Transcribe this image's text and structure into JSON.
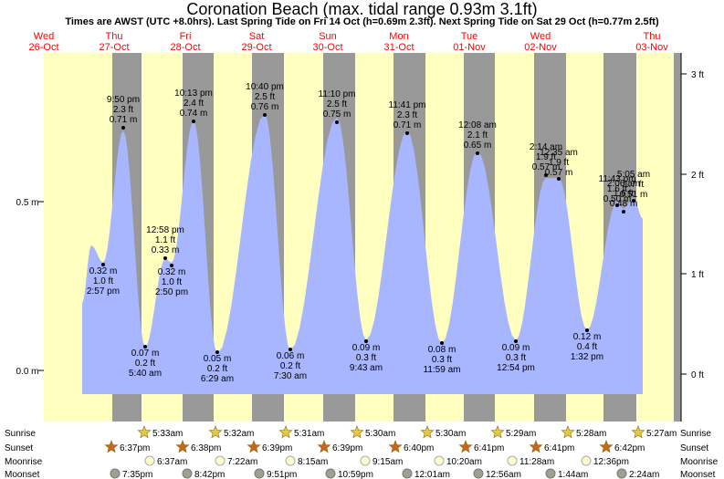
{
  "title": "Coronation Beach (max. tidal range 0.93m 3.1ft)",
  "subtitle": "Times are AWST (UTC +8.0hrs). Last Spring Tide on Fri 14 Oct (h=0.69m 2.3ft). Next Spring Tide on Sat 29 Oct (h=0.77m 2.5ft)",
  "colors": {
    "day": "#ffffc0",
    "night": "#999999",
    "tide": "#a8b5ff",
    "date_text": "#ff0000",
    "sun_star": "#e6c84a",
    "sunset_star": "#c8651e",
    "moonrise": "#ffffcc",
    "moonset": "#a0a090"
  },
  "chart_data": {
    "type": "area",
    "y_range_m": [
      -0.15,
      0.86
    ],
    "y_ticks_left": [
      "0.0 m",
      "0.5 m"
    ],
    "y_ticks_right": [
      "0 ft",
      "1 ft",
      "2 ft",
      "3 ft"
    ],
    "dates": [
      {
        "day": "Wed",
        "date": "26-Oct"
      },
      {
        "day": "Thu",
        "date": "27-Oct"
      },
      {
        "day": "Fri",
        "date": "28-Oct"
      },
      {
        "day": "Sat",
        "date": "29-Oct"
      },
      {
        "day": "Sun",
        "date": "30-Oct"
      },
      {
        "day": "Mon",
        "date": "31-Oct"
      },
      {
        "day": "Tue",
        "date": "01-Nov"
      },
      {
        "day": "Wed",
        "date": "02-Nov"
      },
      {
        "day": "Thu",
        "date": "03-Nov"
      }
    ],
    "tides": [
      {
        "type": "high",
        "time": "9:50 pm",
        "ft": "2.3 ft",
        "m": "0.71 m",
        "height": 0.71
      },
      {
        "type": "low",
        "time": "5:40 am",
        "ft": "0.2 ft",
        "m": "0.07 m",
        "height": 0.07
      },
      {
        "type": "high",
        "time": "12:58 pm",
        "ft": "1.1 ft",
        "m": "0.33 m",
        "height": 0.33
      },
      {
        "type": "low",
        "time": "2:50 pm",
        "ft": "1.0 ft",
        "m": "0.32 m",
        "height": 0.32
      },
      {
        "type": "high",
        "time": "10:13 pm",
        "ft": "2.4 ft",
        "m": "0.74 m",
        "height": 0.74
      },
      {
        "type": "low",
        "time": "6:29 am",
        "ft": "0.2 ft",
        "m": "0.05 m",
        "height": 0.05
      },
      {
        "type": "high",
        "time": "10:40 pm",
        "ft": "2.5 ft",
        "m": "0.76 m",
        "height": 0.76
      },
      {
        "type": "low",
        "time": "7:30 am",
        "ft": "0.2 ft",
        "m": "0.06 m",
        "height": 0.06
      },
      {
        "type": "high",
        "time": "11:10 pm",
        "ft": "2.5 ft",
        "m": "0.75 m",
        "height": 0.75
      },
      {
        "type": "low",
        "time": "9:43 am",
        "ft": "0.3 ft",
        "m": "0.09 m",
        "height": 0.09
      },
      {
        "type": "high",
        "time": "11:41 pm",
        "ft": "2.3 ft",
        "m": "0.71 m",
        "height": 0.71
      },
      {
        "type": "low",
        "time": "11:59 am",
        "ft": "0.3 ft",
        "m": "0.08 m",
        "height": 0.08
      },
      {
        "type": "high",
        "time": "12:08 am",
        "ft": "2.1 ft",
        "m": "0.65 m",
        "height": 0.65
      },
      {
        "type": "low",
        "time": "12:54 pm",
        "ft": "0.3 ft",
        "m": "0.09 m",
        "height": 0.09
      },
      {
        "type": "high",
        "time": "2:14 am",
        "ft": "1.9 ft",
        "m": "0.57 m",
        "height": 0.57
      },
      {
        "type": "low",
        "time": "1:32 pm",
        "ft": "0.4 ft",
        "m": "0.12 m",
        "height": 0.12
      },
      {
        "type": "high",
        "time": "2:06 am",
        "ft": "1.6 ft",
        "m": "0.48 m",
        "height": 0.48
      }
    ],
    "first_point": {
      "time": "2:57 pm",
      "ft": "1.0 ft",
      "m": "0.32 m",
      "height": 0.32
    },
    "overlap_labels": [
      {
        "time": "12:35 am",
        "ft": "1.9 ft",
        "m": "0.57 m"
      },
      {
        "time": "11:43 pm",
        "ft": "1.6 ft",
        "m": "0.50 m"
      },
      {
        "time": "5:05 am",
        "ft": "1.7 ft",
        "m": "0.51 m"
      }
    ],
    "rows": {
      "labels": [
        "Sunrise",
        "Sunset",
        "Moonrise",
        "Moonset"
      ],
      "sunrise": [
        "5:33am",
        "5:32am",
        "5:31am",
        "5:30am",
        "5:30am",
        "5:29am",
        "5:28am",
        "5:27am"
      ],
      "sunset": [
        "6:37pm",
        "6:38pm",
        "6:39pm",
        "6:39pm",
        "6:40pm",
        "6:41pm",
        "6:41pm",
        "6:42pm"
      ],
      "moonrise": [
        "6:37am",
        "7:22am",
        "8:15am",
        "9:15am",
        "10:20am",
        "11:28am",
        "12:36pm"
      ],
      "moonset": [
        "7:35pm",
        "8:42pm",
        "9:51pm",
        "10:59pm",
        "12:01am",
        "12:56am",
        "1:44am",
        "2:24am"
      ]
    }
  }
}
